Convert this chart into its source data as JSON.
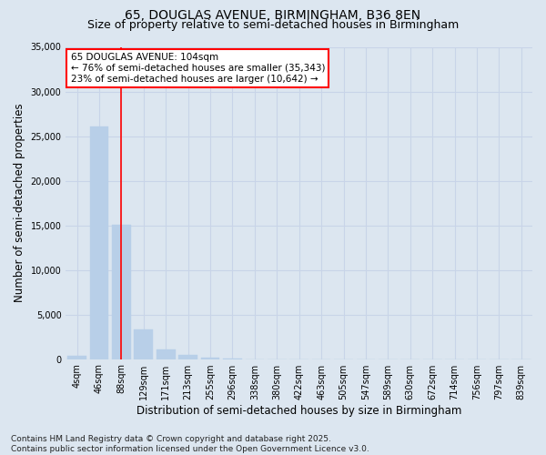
{
  "title_line1": "65, DOUGLAS AVENUE, BIRMINGHAM, B36 8EN",
  "title_line2": "Size of property relative to semi-detached houses in Birmingham",
  "xlabel": "Distribution of semi-detached houses by size in Birmingham",
  "ylabel": "Number of semi-detached properties",
  "categories": [
    "4sqm",
    "46sqm",
    "88sqm",
    "129sqm",
    "171sqm",
    "213sqm",
    "255sqm",
    "296sqm",
    "338sqm",
    "380sqm",
    "422sqm",
    "463sqm",
    "505sqm",
    "547sqm",
    "589sqm",
    "630sqm",
    "672sqm",
    "714sqm",
    "756sqm",
    "797sqm",
    "839sqm"
  ],
  "values": [
    400,
    26100,
    15100,
    3300,
    1050,
    500,
    150,
    50,
    0,
    0,
    0,
    0,
    0,
    0,
    0,
    0,
    0,
    0,
    0,
    0,
    0
  ],
  "bar_color": "#b8cfe8",
  "bar_edge_color": "#b8cfe8",
  "vline_x": 2,
  "vline_color": "red",
  "vline_lw": 1.2,
  "annotation_title": "65 DOUGLAS AVENUE: 104sqm",
  "annotation_line1": "← 76% of semi-detached houses are smaller (35,343)",
  "annotation_line2": "23% of semi-detached houses are larger (10,642) →",
  "annotation_box_color": "white",
  "annotation_box_edge": "red",
  "ylim": [
    0,
    35000
  ],
  "yticks": [
    0,
    5000,
    10000,
    15000,
    20000,
    25000,
    30000,
    35000
  ],
  "grid_color": "#c8d4e8",
  "bg_color": "#dce6f0",
  "plot_bg_color": "#dce6f0",
  "footer_line1": "Contains HM Land Registry data © Crown copyright and database right 2025.",
  "footer_line2": "Contains public sector information licensed under the Open Government Licence v3.0.",
  "title_fontsize": 10,
  "subtitle_fontsize": 9,
  "axis_label_fontsize": 8.5,
  "tick_fontsize": 7,
  "annot_fontsize": 7.5,
  "footer_fontsize": 6.5
}
